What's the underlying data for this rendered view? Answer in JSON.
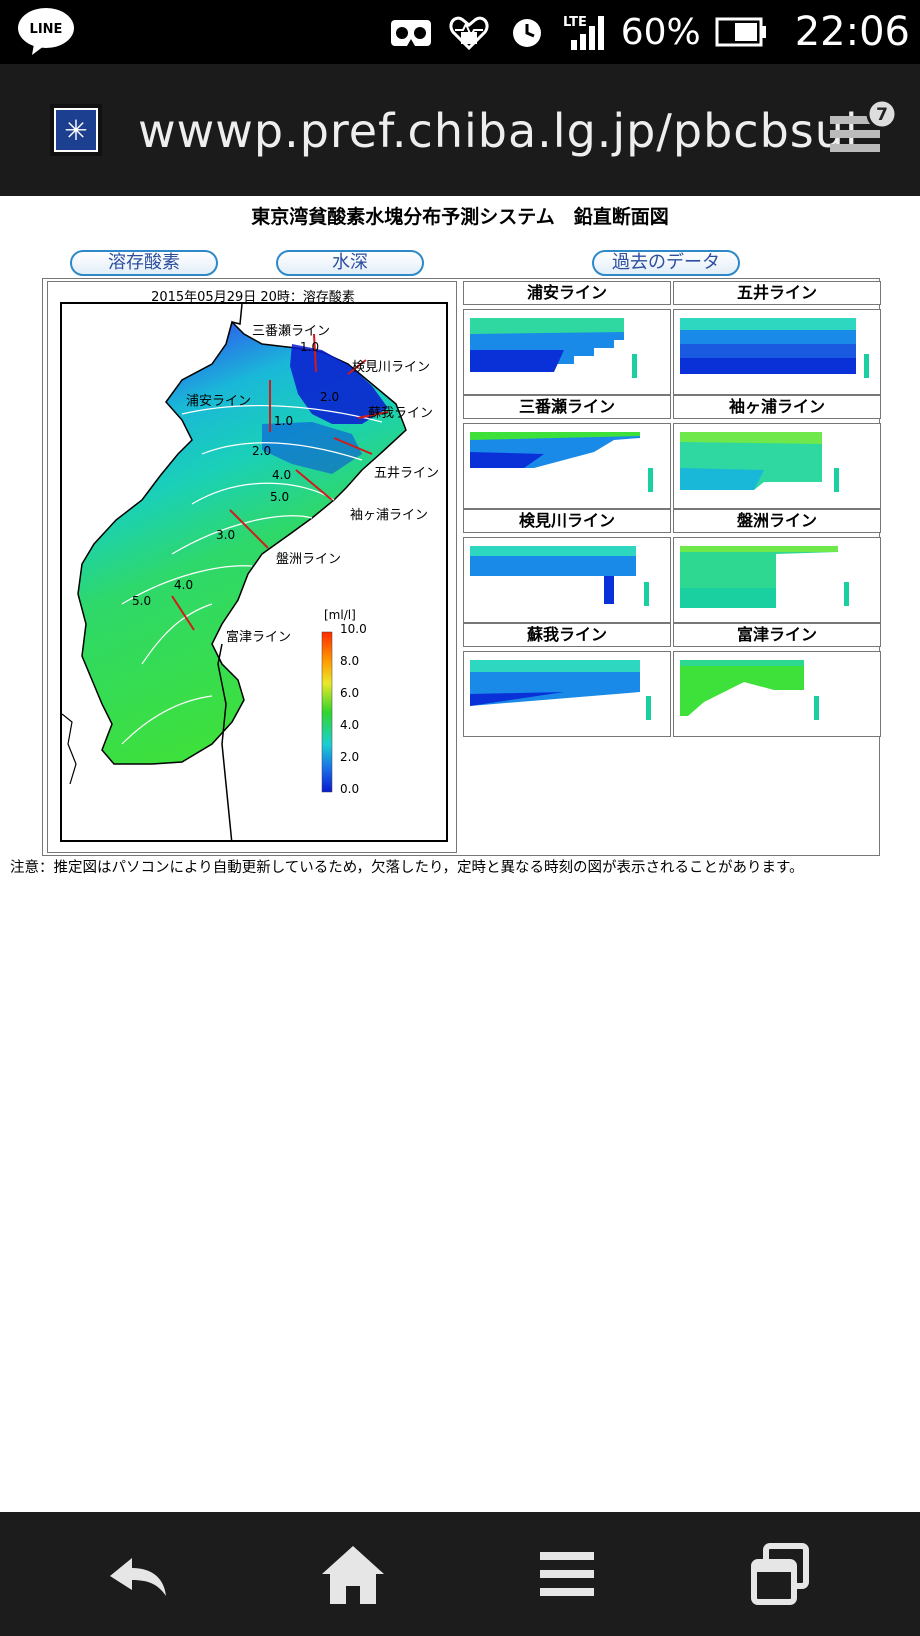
{
  "status_bar": {
    "battery_percent": "60%",
    "time": "22:06",
    "network": "LTE",
    "icons": [
      "line-app-icon",
      "vr-headset-icon",
      "health-heart-icon",
      "alarm-clock-icon",
      "lte-signal-icon",
      "battery-icon"
    ]
  },
  "browser": {
    "url": "wwwp.pref.chiba.lg.jp/pbcbsui",
    "tab_count": "7"
  },
  "page": {
    "title": "東京湾貧酸素水塊分布予測システム　鉛直断面図",
    "buttons": {
      "dissolved_oxygen": "溶存酸素",
      "water_depth": "水深",
      "past_data": "過去のデータ"
    },
    "map": {
      "caption": "2015年05月29日 20時：溶存酸素",
      "line_labels": [
        "三番瀬ライン",
        "検見川ライン",
        "浦安ライン",
        "蘇我ライン",
        "五井ライン",
        "袖ヶ浦ライン",
        "盤洲ライン",
        "富津ライン"
      ],
      "contour_labels": [
        "1.0",
        "1.0",
        "2.0",
        "2.0",
        "4.0",
        "5.0",
        "3.0",
        "4.0",
        "5.0"
      ],
      "legend": {
        "unit": "[ml/l]",
        "ticks": [
          "10.0",
          "8.0",
          "6.0",
          "4.0",
          "2.0",
          "0.0"
        ]
      }
    },
    "sections": [
      {
        "title": "浦安ライン"
      },
      {
        "title": "五井ライン"
      },
      {
        "title": "三番瀬ライン"
      },
      {
        "title": "袖ヶ浦ライン"
      },
      {
        "title": "検見川ライン"
      },
      {
        "title": "盤洲ライン"
      },
      {
        "title": "蘇我ライン"
      },
      {
        "title": "富津ライン"
      }
    ],
    "notice": "注意：推定図はパソコンにより自動更新しているため，欠落したり，定時と異なる時刻の図が表示されることがあります。"
  },
  "colors": {
    "do_high": "#ff2a00",
    "do_mid": "#32d52c",
    "do_low": "#0a2ad8",
    "water_cyan": "#1ac9c9",
    "land": "#ffffff"
  }
}
